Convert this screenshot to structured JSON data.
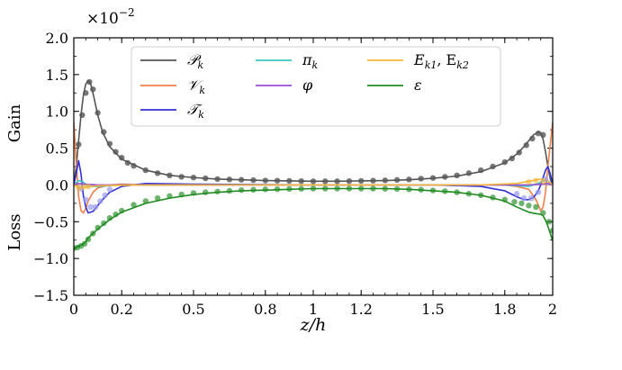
{
  "chart_data": {
    "type": "line",
    "xlabel": "z/h",
    "ylabels": {
      "upper": "Gain",
      "lower": "Loss"
    },
    "multiplier": "×10",
    "multiplier_exp": "−2",
    "xlim": [
      0,
      2
    ],
    "ylim": [
      -1.5,
      2.0
    ],
    "xticks": [
      0,
      0.2,
      0.5,
      0.8,
      1,
      1.2,
      1.5,
      1.8,
      2
    ],
    "xtick_labels": [
      "0",
      "0.2",
      "0.5",
      "0.8",
      "1",
      "1.2",
      "1.5",
      "1.8",
      "2"
    ],
    "yticks": [
      -1.5,
      -1.0,
      -0.5,
      0.0,
      0.5,
      1.0,
      1.5,
      2.0
    ],
    "ytick_labels": [
      "−1.5",
      "−1.0",
      "−0.5",
      "0.0",
      "0.5",
      "1.0",
      "1.5",
      "2.0"
    ],
    "legend_position": "top-center",
    "series": [
      {
        "name": "𝒫",
        "sub": "k",
        "color": "#555555",
        "x": [
          0,
          0.01,
          0.02,
          0.03,
          0.04,
          0.05,
          0.06,
          0.07,
          0.08,
          0.1,
          0.12,
          0.15,
          0.2,
          0.3,
          0.4,
          0.5,
          0.6,
          0.7,
          0.8,
          0.9,
          1.0,
          1.1,
          1.2,
          1.3,
          1.4,
          1.5,
          1.6,
          1.7,
          1.8,
          1.85,
          1.88,
          1.9,
          1.92,
          1.94,
          1.95,
          1.96,
          1.97,
          1.98,
          1.99,
          2.0
        ],
        "y": [
          0,
          0.25,
          0.6,
          0.95,
          1.22,
          1.37,
          1.42,
          1.38,
          1.25,
          0.95,
          0.72,
          0.52,
          0.35,
          0.2,
          0.13,
          0.1,
          0.08,
          0.07,
          0.06,
          0.055,
          0.05,
          0.05,
          0.055,
          0.06,
          0.07,
          0.09,
          0.12,
          0.18,
          0.3,
          0.42,
          0.52,
          0.6,
          0.68,
          0.72,
          0.71,
          0.62,
          0.45,
          0.25,
          0.08,
          0
        ]
      },
      {
        "name": "𝒱",
        "sub": "k",
        "color": "#f07f4a",
        "x": [
          0,
          0.01,
          0.02,
          0.03,
          0.04,
          0.05,
          0.06,
          0.08,
          0.1,
          0.15,
          0.2,
          0.3,
          1.0,
          1.7,
          1.8,
          1.85,
          1.9,
          1.93,
          1.95,
          1.96,
          1.97,
          1.98,
          1.99,
          2.0
        ],
        "y": [
          0.85,
          0.3,
          -0.15,
          -0.35,
          -0.38,
          -0.32,
          -0.22,
          -0.1,
          -0.04,
          0.0,
          0.01,
          0.0,
          0.0,
          0.0,
          0.0,
          -0.02,
          -0.06,
          -0.2,
          -0.35,
          -0.3,
          -0.1,
          0.25,
          0.55,
          0.85
        ]
      },
      {
        "name": "𝒯",
        "sub": "k",
        "color": "#3030d8",
        "x": [
          0,
          0.01,
          0.02,
          0.03,
          0.04,
          0.05,
          0.06,
          0.08,
          0.1,
          0.12,
          0.15,
          0.2,
          0.3,
          0.5,
          1.0,
          1.5,
          1.7,
          1.8,
          1.85,
          1.88,
          1.9,
          1.92,
          1.94,
          1.95,
          1.96,
          1.97,
          1.98,
          1.99,
          2.0
        ],
        "y": [
          0,
          0.15,
          0.33,
          0.15,
          -0.15,
          -0.3,
          -0.38,
          -0.36,
          -0.28,
          -0.2,
          -0.1,
          -0.02,
          0.02,
          0.01,
          0.0,
          0.0,
          -0.02,
          -0.08,
          -0.16,
          -0.2,
          -0.2,
          -0.17,
          -0.08,
          0.0,
          0.1,
          0.2,
          0.25,
          0.15,
          0
        ]
      },
      {
        "name": "π",
        "sub": "k",
        "color": "#3ec7c0",
        "x": [
          0,
          0.02,
          0.04,
          0.06,
          0.1,
          0.2,
          1.0,
          1.8,
          1.9,
          1.94,
          1.96,
          1.98,
          2.0
        ],
        "y": [
          0,
          0.06,
          0.04,
          -0.02,
          -0.02,
          0.0,
          0.0,
          0.0,
          -0.02,
          0.02,
          0.06,
          0.05,
          0
        ]
      },
      {
        "name": "φ",
        "sub": "",
        "color": "#9a4fd0",
        "x": [
          0,
          0.02,
          0.05,
          0.1,
          0.3,
          1.0,
          1.7,
          1.9,
          1.95,
          1.98,
          2.0
        ],
        "y": [
          0,
          0.02,
          0.01,
          0.0,
          0.0,
          0.0,
          0.0,
          0.0,
          0.01,
          0.02,
          0
        ]
      },
      {
        "name": "E",
        "sub": "k1",
        "extra": ", E",
        "extra_sub": "k2",
        "color": "#f5b53a",
        "x": [
          0,
          0.02,
          0.05,
          0.1,
          0.3,
          1.0,
          1.7,
          1.85,
          1.9,
          1.95,
          1.98,
          2.0
        ],
        "y": [
          0,
          -0.04,
          -0.03,
          -0.01,
          0.0,
          0.0,
          0.0,
          0.02,
          0.05,
          0.08,
          0.06,
          0
        ]
      },
      {
        "name": "ε",
        "sub": "",
        "color": "#1f8a20",
        "x": [
          0,
          0.01,
          0.02,
          0.03,
          0.04,
          0.05,
          0.06,
          0.08,
          0.1,
          0.15,
          0.2,
          0.3,
          0.4,
          0.5,
          0.6,
          0.7,
          0.8,
          0.9,
          1.0,
          1.1,
          1.2,
          1.3,
          1.4,
          1.5,
          1.6,
          1.7,
          1.8,
          1.85,
          1.9,
          1.93,
          1.95,
          1.96,
          1.97,
          1.98,
          1.99,
          2.0
        ],
        "y": [
          -0.88,
          -0.85,
          -0.83,
          -0.82,
          -0.8,
          -0.77,
          -0.72,
          -0.66,
          -0.6,
          -0.47,
          -0.37,
          -0.25,
          -0.18,
          -0.13,
          -0.1,
          -0.08,
          -0.07,
          -0.06,
          -0.05,
          -0.05,
          -0.05,
          -0.05,
          -0.06,
          -0.08,
          -0.1,
          -0.14,
          -0.22,
          -0.3,
          -0.37,
          -0.39,
          -0.4,
          -0.42,
          -0.48,
          -0.56,
          -0.66,
          -0.76
        ]
      }
    ],
    "markers": [
      {
        "color": "#555555",
        "opacity": 0.8,
        "x": [
          0.02,
          0.035,
          0.05,
          0.065,
          0.08,
          0.1,
          0.125,
          0.15,
          0.175,
          0.2,
          0.225,
          0.25,
          0.3,
          0.35,
          0.4,
          0.45,
          0.5,
          0.55,
          0.6,
          0.65,
          0.7,
          0.75,
          0.8,
          0.85,
          0.9,
          0.95,
          1.0,
          1.05,
          1.1,
          1.15,
          1.2,
          1.25,
          1.3,
          1.35,
          1.4,
          1.45,
          1.5,
          1.55,
          1.6,
          1.65,
          1.7,
          1.75,
          1.8,
          1.83,
          1.86,
          1.89,
          1.915,
          1.94,
          1.96
        ],
        "y": [
          0.55,
          0.95,
          1.25,
          1.4,
          1.3,
          0.98,
          0.72,
          0.56,
          0.45,
          0.37,
          0.3,
          0.26,
          0.2,
          0.16,
          0.13,
          0.11,
          0.1,
          0.09,
          0.08,
          0.075,
          0.07,
          0.065,
          0.06,
          0.058,
          0.055,
          0.052,
          0.05,
          0.05,
          0.05,
          0.052,
          0.055,
          0.058,
          0.062,
          0.068,
          0.075,
          0.085,
          0.095,
          0.11,
          0.13,
          0.16,
          0.2,
          0.25,
          0.31,
          0.36,
          0.44,
          0.54,
          0.63,
          0.7,
          0.68
        ]
      },
      {
        "color": "#1f8a20",
        "opacity": 0.65,
        "x": [
          0.0,
          0.015,
          0.03,
          0.045,
          0.06,
          0.08,
          0.1,
          0.125,
          0.15,
          0.175,
          0.2,
          0.25,
          0.3,
          0.35,
          0.4,
          0.45,
          0.5,
          0.55,
          0.6,
          0.65,
          0.7,
          0.75,
          0.8,
          0.85,
          0.9,
          0.95,
          1.0,
          1.05,
          1.1,
          1.15,
          1.2,
          1.25,
          1.3,
          1.35,
          1.4,
          1.45,
          1.5,
          1.55,
          1.6,
          1.65,
          1.7,
          1.75,
          1.8,
          1.84,
          1.87,
          1.9,
          1.93,
          1.96,
          1.985,
          2.0
        ],
        "y": [
          -0.86,
          -0.85,
          -0.83,
          -0.8,
          -0.74,
          -0.66,
          -0.58,
          -0.52,
          -0.45,
          -0.4,
          -0.35,
          -0.27,
          -0.22,
          -0.18,
          -0.15,
          -0.13,
          -0.11,
          -0.1,
          -0.09,
          -0.08,
          -0.07,
          -0.065,
          -0.06,
          -0.058,
          -0.055,
          -0.053,
          -0.05,
          -0.05,
          -0.05,
          -0.05,
          -0.05,
          -0.05,
          -0.052,
          -0.055,
          -0.06,
          -0.065,
          -0.075,
          -0.085,
          -0.1,
          -0.12,
          -0.14,
          -0.17,
          -0.2,
          -0.23,
          -0.25,
          -0.28,
          -0.3,
          -0.38,
          -0.5,
          -0.62
        ]
      },
      {
        "color": "#9a9aee",
        "opacity": 0.7,
        "x": [
          0.03,
          0.05,
          0.07,
          0.09,
          0.11,
          0.13,
          0.15,
          1.85,
          1.88,
          1.91,
          1.94,
          1.97
        ],
        "y": [
          -0.05,
          -0.2,
          -0.3,
          -0.3,
          -0.22,
          -0.14,
          -0.06,
          -0.12,
          -0.18,
          -0.18,
          -0.1,
          0.08
        ]
      },
      {
        "color": "#f5b53a",
        "opacity": 0.6,
        "x": [
          0.02,
          0.04,
          0.06,
          1.9,
          1.93,
          1.96
        ],
        "y": [
          -0.04,
          -0.03,
          -0.02,
          0.04,
          0.06,
          0.05
        ]
      }
    ]
  }
}
